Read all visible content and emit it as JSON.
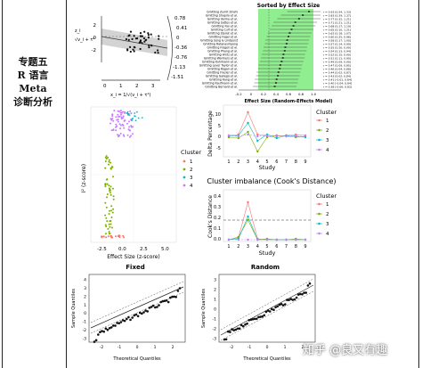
{
  "sidebar": {
    "title_lines": [
      "专题五",
      "R 语言 Meta",
      "诊断分析"
    ]
  },
  "watermark": "知乎 @良又有趣",
  "galbraith": {
    "ylabel_lines": [
      "z_i",
      "√v_i + τ²"
    ],
    "xlabel": "x_i = 1/√(v_i + τ²)",
    "x_ticks": [
      "0",
      "1",
      "2",
      "3"
    ],
    "y_ticks": [
      "2",
      "0",
      "-2"
    ],
    "right_ticks": [
      "0.78",
      "0.41",
      "0",
      "-0.36",
      "-0.76",
      "-1.13",
      "-1.51"
    ]
  },
  "forest": {
    "title": "Sorted by Effect Size",
    "xlabel": "Effect Size (Random-Effects Model)",
    "x_ticks": [
      "-0.2",
      "0",
      "0.2",
      "0.4",
      "0.6",
      "0.8",
      "1.0"
    ],
    "studies": [
      "Gmitting Zumlt Zinsfs",
      "Gmitting Shapiro et al.",
      "Gmitting Varma et al.",
      "Gmitting Sattes et al.",
      "Gmitting Fox et al.",
      "Gmitting Culf et al.",
      "Gmitting Sterek et al.",
      "Gmitting Fogel et al.",
      "Gmitting Song & Lindquist",
      "Gmitting Ratanasiripong",
      "Gmitting Frogeli et al.",
      "Gmitting Phang et al.",
      "Gmitting Hintz et al.",
      "Gmitting Warmers et al.",
      "Gmitting Kuhlmann et al.",
      "Gmitting Lever Taylor et al.",
      "Gmitting Rogan et al.",
      "Gmitting Frazier et al.",
      "Gmitting Gallego et al.",
      "Gmitting Kang et al.",
      "Gmitting Kaufmann et al.",
      "Gmitting Bernard et al."
    ],
    "values": [
      "r = 0.93 [0.54; 1.33]",
      "r = 0.83 [0.29; 1.37]",
      "r = 0.77 [0.32; 1.21]",
      "r = 0.71 [0.21; 1.21]",
      "r = 0.68 [0.17; 1.19]",
      "r = 0.65 [0.10; 1.21]",
      "r = 0.62 [0.18; 1.07]",
      "r = 0.60 [0.25; 0.96]",
      "r = 0.58 [0.17; 1.00]",
      "r = 0.57 [0.14; 0.99]",
      "r = 0.55 [0.20; 0.90]",
      "r = 0.54 [0.13; 0.94]",
      "r = 0.52 [0.15; 0.90]",
      "r = 0.51 [0.11; 0.90]",
      "r = 0.49 [0.09; 0.90]",
      "r = 0.47 [0.09; 0.85]",
      "r = 0.46 [0.04; 0.88]",
      "r = 0.44 [0.02; 0.87]",
      "r = 0.43 [0.02; 0.84]",
      "r = 0.41 [-0.01; 0.84]",
      "r = 0.40 [-0.04; 0.84]",
      "r = 0.38 [-0.06; 0.82]"
    ],
    "effects": [
      0.93,
      0.83,
      0.77,
      0.71,
      0.68,
      0.65,
      0.62,
      0.6,
      0.58,
      0.57,
      0.55,
      0.54,
      0.52,
      0.51,
      0.49,
      0.47,
      0.46,
      0.44,
      0.43,
      0.41,
      0.4,
      0.38
    ]
  },
  "cluster_scatter": {
    "ylabel": "I² (z-score)",
    "xlabel": "Effect Size (z-score)",
    "x_ticks": [
      "-2.5",
      "0.0",
      "2.5",
      "5.0"
    ],
    "legend_title": "Cluster",
    "legend": [
      "1",
      "2",
      "3",
      "4"
    ]
  },
  "delta_chart": {
    "ylabel": "Delta Percentage",
    "xlabel": "Study",
    "x_ticks": [
      "1",
      "2",
      "3",
      "4",
      "5",
      "6",
      "7",
      "8",
      "9"
    ],
    "y_ticks": [
      "10",
      "5",
      "0",
      "-5"
    ],
    "legend_title": "Cluster",
    "legend": [
      "1",
      "2",
      "3",
      "4"
    ]
  },
  "cooks_chart": {
    "title": "Cluster imbalance (Cook's Distance)",
    "ylabel": "Cook's Distance",
    "xlabel": "Study",
    "x_ticks": [
      "1",
      "2",
      "3",
      "4",
      "5",
      "6",
      "7",
      "8",
      "9"
    ],
    "y_ticks": [
      "0.4",
      "0.3",
      "0.2",
      "0.1",
      "0.0"
    ],
    "legend_title": "Cluster",
    "legend": [
      "1",
      "2",
      "3",
      "4"
    ]
  },
  "qq_fixed": {
    "title": "Fixed",
    "ylabel": "Sample Quantiles",
    "xlabel": "Theoretical Quantiles",
    "x_ticks": [
      "-2",
      "-1",
      "0",
      "1",
      "2"
    ],
    "y_ticks": [
      "4",
      "3",
      "2",
      "1",
      "0",
      "-1",
      "-2",
      "-3"
    ]
  },
  "qq_random": {
    "title": "Random",
    "ylabel": "Sample Quantiles",
    "xlabel": "Theoretical Quantiles",
    "x_ticks": [
      "-2",
      "-1",
      "0",
      "1",
      "2"
    ],
    "y_ticks": [
      "3",
      "2",
      "1",
      "0",
      "-1",
      "-2",
      "-3"
    ]
  },
  "colors": {
    "cluster1": "#f8766d",
    "cluster2": "#7cae00",
    "cluster3": "#00bfc4",
    "cluster4": "#c77cff",
    "forest_band": "#90ee90"
  }
}
